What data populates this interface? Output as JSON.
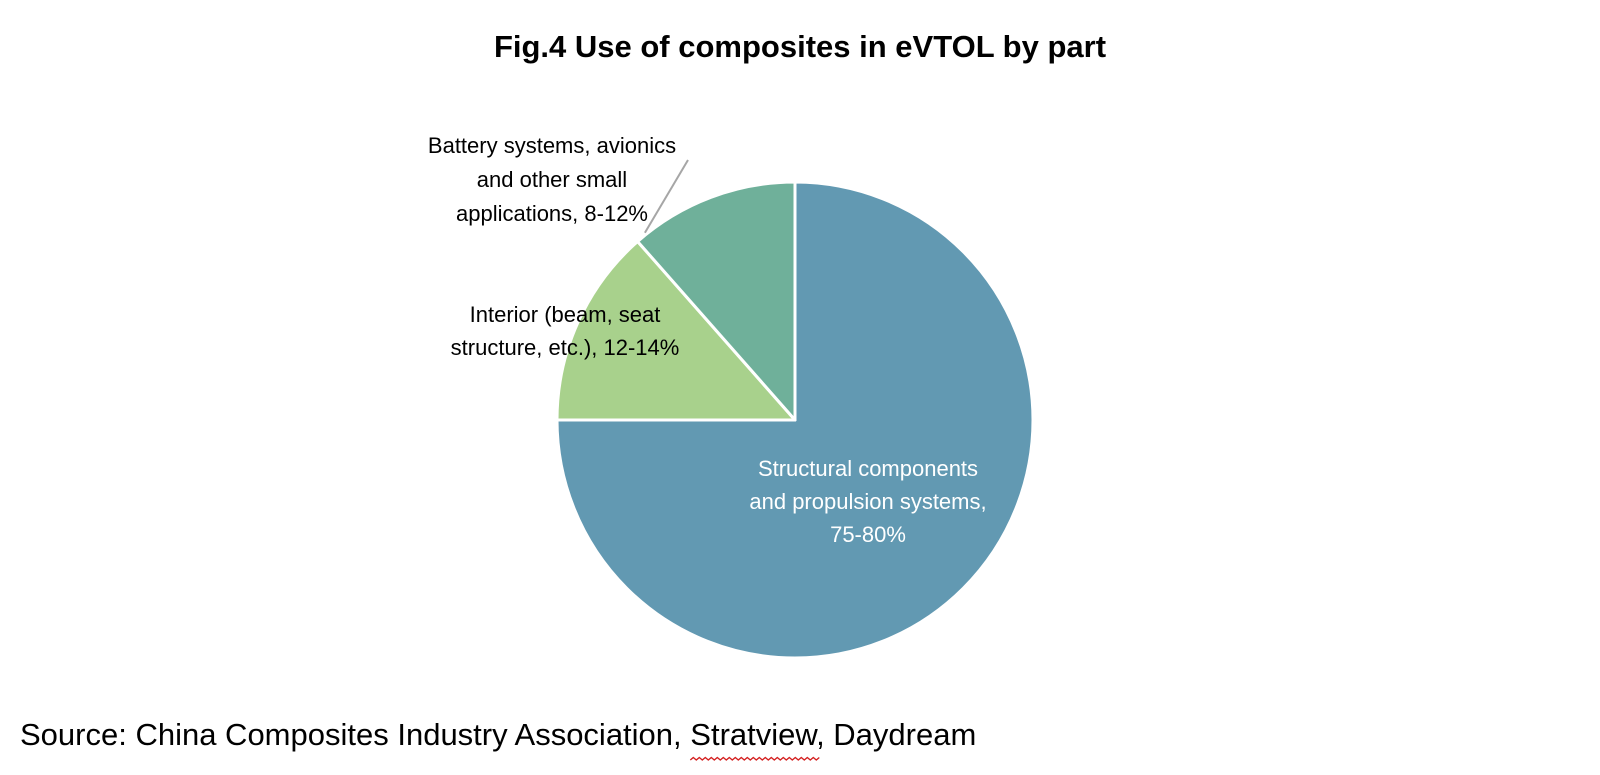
{
  "chart_data": {
    "type": "pie",
    "title": "Fig.4 Use of composites in eVTOL by part",
    "start_angle_deg": 0,
    "direction": "clockwise",
    "slices": [
      {
        "label_lines": [
          "Structural components",
          "and propulsion systems,",
          "75-80%"
        ],
        "value": 75,
        "color": "#6299b2",
        "label_color": "#ffffff"
      },
      {
        "label_lines": [
          "Interior (beam, seat",
          "structure, etc.), 12-14%"
        ],
        "value": 13.5,
        "color": "#a8d18c",
        "label_color": "#000000"
      },
      {
        "label_lines": [
          "Battery systems, avionics",
          "and other small",
          "applications, 8-12%"
        ],
        "value": 11.5,
        "color": "#6fb09a",
        "label_color": "#000000"
      }
    ],
    "legend": "none",
    "leader_line_color": "#a6a6a6"
  },
  "source": {
    "prefix": "Source: China Composites Industry Association, ",
    "underlined": "Stratview",
    "suffix": ", Daydream"
  }
}
